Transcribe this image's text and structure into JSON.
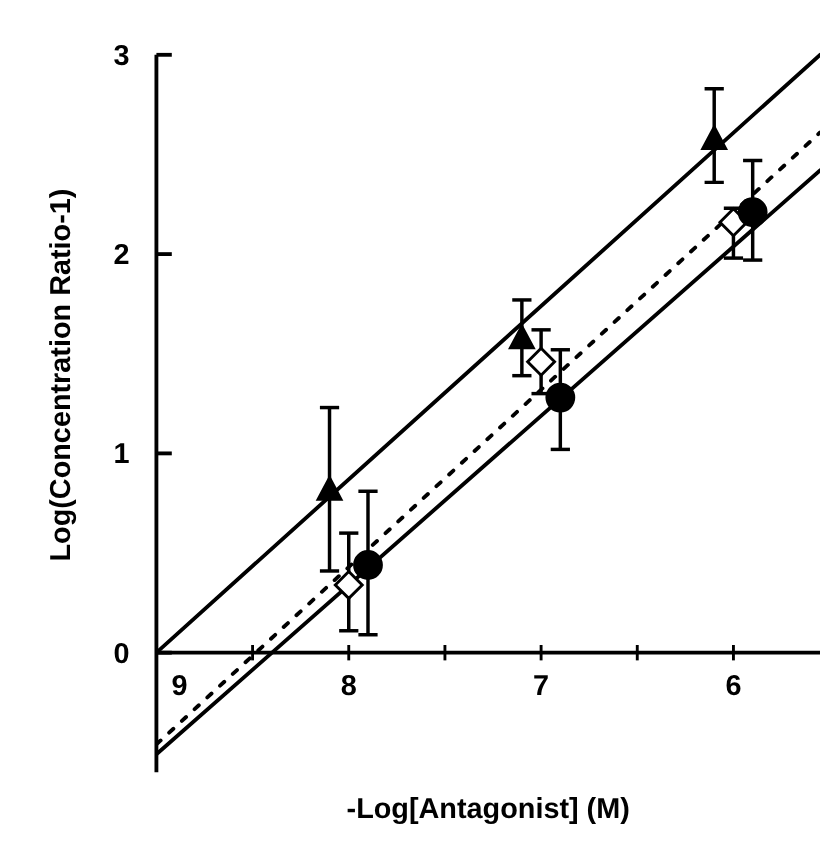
{
  "chart_data": {
    "type": "scatter",
    "xlabel": "-Log[Antagonist] (M)",
    "ylabel": "Log(Concentration Ratio-1)",
    "xlim": [
      9,
      5.55
    ],
    "xticks": [
      9,
      {
        "value": 8.5,
        "label": null
      },
      8,
      {
        "value": 7.5,
        "label": null
      },
      7,
      {
        "value": 6.5,
        "label": null
      },
      6
    ],
    "ylim": [
      -0.6,
      3
    ],
    "yticks": [
      0,
      1,
      2,
      3
    ],
    "grid": false,
    "series": [
      {
        "marker": "triangle",
        "color": "#000000",
        "x": [
          8.1,
          7.1,
          6.1
        ],
        "values": [
          0.81,
          1.57,
          2.57
        ],
        "errors": [
          [
            0.41,
            1.23
          ],
          [
            1.39,
            1.77
          ],
          [
            2.36,
            2.83
          ]
        ]
      },
      {
        "marker": "diamond",
        "color": "#ffffff",
        "x": [
          8.0,
          7.0,
          6.0
        ],
        "values": [
          0.34,
          1.46,
          2.16
        ],
        "errors": [
          [
            0.11,
            0.6
          ],
          [
            1.3,
            1.62
          ],
          [
            1.98,
            2.23
          ]
        ]
      },
      {
        "marker": "circle",
        "color": "#000000",
        "x": [
          7.9,
          6.9,
          5.9
        ],
        "values": [
          0.44,
          1.28,
          2.21
        ],
        "errors": [
          [
            0.09,
            0.81
          ],
          [
            1.02,
            1.52
          ],
          [
            1.97,
            2.47
          ]
        ]
      },
      {
        "type": "line",
        "line_style": "solid",
        "color": "#000000",
        "x": [
          9,
          5.55
        ],
        "values": [
          0,
          3.0
        ]
      },
      {
        "type": "line",
        "line_style": "dotted",
        "color": "#000000",
        "x": [
          9,
          5.55
        ],
        "values": [
          -0.46,
          2.61
        ]
      },
      {
        "type": "line",
        "line_style": "solid",
        "color": "#000000",
        "x": [
          9,
          5.55
        ],
        "values": [
          -0.51,
          2.42
        ]
      }
    ]
  }
}
